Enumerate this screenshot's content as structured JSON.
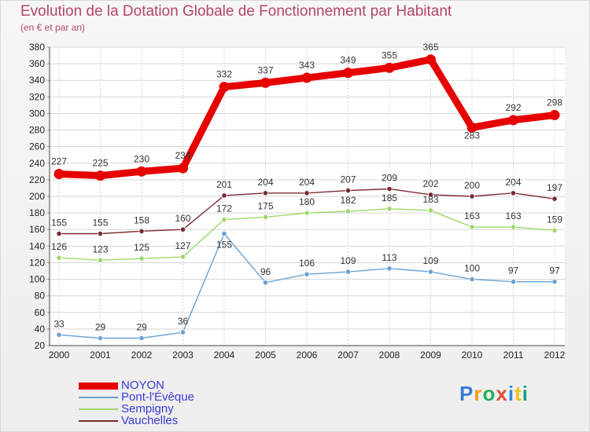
{
  "title": "Evolution de la Dotation Globale de Fonctionnement par Habitant",
  "subtitle": "(en € et par an)",
  "logo": "Proxiti",
  "colors": {
    "title": "#b5456d",
    "legend_text": "#3a3ad6",
    "grid": "#d6d6d6",
    "background": "#f2f2f2"
  },
  "chart_data": {
    "type": "line",
    "title": "Evolution de la Dotation Globale de Fonctionnement par Habitant",
    "subtitle": "(en € et par an)",
    "xlabel": "",
    "ylabel": "",
    "categories": [
      "2000",
      "2001",
      "2002",
      "2003",
      "2004",
      "2005",
      "2006",
      "2007",
      "2008",
      "2009",
      "2010",
      "2011",
      "2012"
    ],
    "ylim": [
      20,
      380
    ],
    "yticks": [
      20,
      40,
      60,
      80,
      100,
      120,
      140,
      160,
      180,
      200,
      220,
      240,
      260,
      280,
      300,
      320,
      340,
      360,
      380
    ],
    "grid": true,
    "legend_position": "bottom-left",
    "series": [
      {
        "name": "NOYON",
        "color": "#e60000",
        "emphasis": true,
        "values": [
          227,
          225,
          230,
          234,
          332,
          337,
          343,
          349,
          355,
          365,
          283,
          292,
          298
        ],
        "labels": [
          "227",
          "225",
          "230",
          "234",
          "332",
          "337",
          "343",
          "349",
          "355",
          "365",
          "283",
          "292",
          "298"
        ]
      },
      {
        "name": "Pont-l'Évêque",
        "color": "#6aa2d2",
        "emphasis": false,
        "values": [
          33,
          29,
          29,
          36,
          155,
          96,
          106,
          109,
          113,
          109,
          100,
          97,
          97
        ],
        "labels": [
          "33",
          "29",
          "29",
          "36",
          "155",
          "96",
          "106",
          "109",
          "113",
          "109",
          "100",
          "97",
          "97"
        ]
      },
      {
        "name": "Sempigny",
        "color": "#9ed86a",
        "emphasis": false,
        "values": [
          126,
          123,
          125,
          127,
          172,
          175,
          180,
          182,
          185,
          183,
          163,
          163,
          159
        ],
        "labels": [
          "126",
          "123",
          "125",
          "127",
          "172",
          "175",
          "180",
          "182",
          "185",
          "183",
          "163",
          "163",
          "159"
        ]
      },
      {
        "name": "Vauchelles",
        "color": "#7a2a34",
        "emphasis": false,
        "values": [
          155,
          155,
          158,
          160,
          201,
          204,
          204,
          207,
          209,
          202,
          200,
          204,
          197
        ],
        "labels": [
          "155",
          "155",
          "158",
          "160",
          "201",
          "204",
          "204",
          "207",
          "209",
          "202",
          "200",
          "204",
          "197"
        ]
      }
    ]
  }
}
